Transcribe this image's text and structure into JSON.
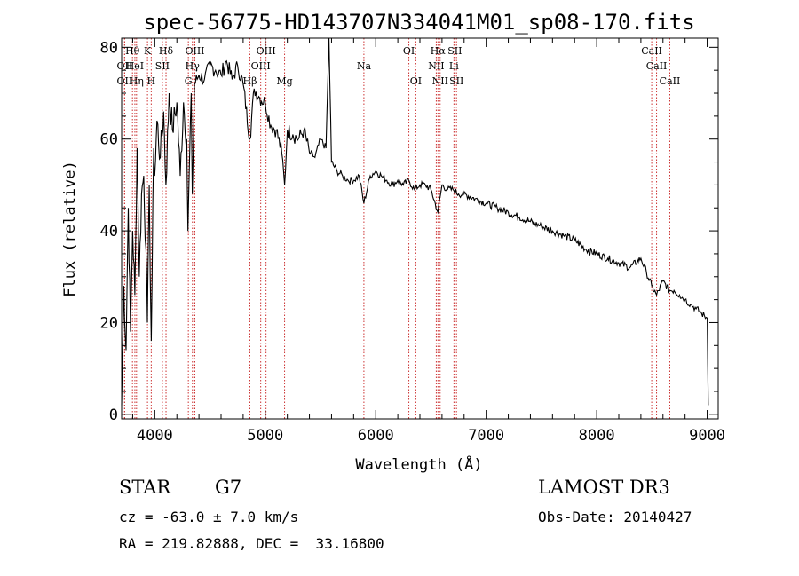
{
  "chart_data": {
    "type": "line",
    "title": "spec-56775-HD143707N334041M01_sp08-170.fits",
    "xlabel": "Wavelength (Å)",
    "ylabel": "Flux (relative)",
    "xlim": [
      3700,
      9100
    ],
    "ylim": [
      -1,
      82
    ],
    "x_ticks": [
      4000,
      5000,
      6000,
      7000,
      8000,
      9000
    ],
    "y_ticks": [
      0,
      20,
      40,
      60,
      80
    ],
    "grid": false,
    "series": [
      {
        "name": "spectrum",
        "x": [
          3700,
          3720,
          3740,
          3760,
          3780,
          3800,
          3820,
          3840,
          3860,
          3880,
          3900,
          3920,
          3933,
          3950,
          3968,
          3990,
          4000,
          4020,
          4050,
          4080,
          4101,
          4130,
          4160,
          4200,
          4230,
          4260,
          4290,
          4300,
          4330,
          4340,
          4360,
          4400,
          4450,
          4500,
          4550,
          4600,
          4650,
          4700,
          4750,
          4800,
          4861,
          4900,
          4950,
          5000,
          5050,
          5100,
          5150,
          5175,
          5200,
          5250,
          5300,
          5350,
          5400,
          5450,
          5500,
          5550,
          5577,
          5600,
          5650,
          5700,
          5750,
          5800,
          5850,
          5893,
          5950,
          6000,
          6050,
          6100,
          6150,
          6200,
          6250,
          6300,
          6350,
          6400,
          6450,
          6500,
          6563,
          6600,
          6650,
          6700,
          6750,
          6800,
          6900,
          7000,
          7100,
          7200,
          7300,
          7400,
          7500,
          7600,
          7700,
          7800,
          7900,
          8000,
          8100,
          8200,
          8300,
          8400,
          8450,
          8498,
          8542,
          8600,
          8662,
          8700,
          8750,
          8800,
          8850,
          8900,
          8950,
          9000,
          9010
        ],
        "values": [
          2,
          28,
          14,
          45,
          18,
          40,
          26,
          58,
          30,
          48,
          52,
          36,
          20,
          50,
          16,
          58,
          52,
          64,
          56,
          66,
          50,
          70,
          62,
          68,
          52,
          68,
          60,
          40,
          70,
          48,
          72,
          74,
          73,
          76,
          75,
          74,
          77,
          73,
          76,
          72,
          60,
          71,
          69,
          68,
          63,
          62,
          57,
          50,
          62,
          61,
          60,
          62,
          57,
          56,
          60,
          58,
          82,
          55,
          53,
          52,
          51,
          51,
          52,
          46,
          52,
          53,
          52,
          51,
          50,
          51,
          50,
          51,
          49,
          50,
          50,
          49,
          44,
          50,
          49,
          49,
          48,
          48,
          47,
          46,
          45,
          44,
          43,
          42,
          41,
          40,
          39,
          38,
          36,
          35,
          34,
          33,
          32,
          34,
          31,
          28,
          26,
          29,
          27,
          27,
          26,
          25,
          24,
          23,
          22,
          21,
          2
        ]
      }
    ],
    "lines": [
      {
        "name": "Hθ",
        "wl": 3798,
        "row": 0
      },
      {
        "name": "OII",
        "wl": 3727,
        "row": 1
      },
      {
        "name": "OII",
        "wl": 3727,
        "row": 2
      },
      {
        "name": "HeI",
        "wl": 3820,
        "row": 1
      },
      {
        "name": "Hη",
        "wl": 3835,
        "row": 2
      },
      {
        "name": "K",
        "wl": 3934,
        "row": 0
      },
      {
        "name": "SII",
        "wl": 4069,
        "row": 1
      },
      {
        "name": "H",
        "wl": 3968,
        "row": 2
      },
      {
        "name": "Hδ",
        "wl": 4102,
        "row": 0
      },
      {
        "name": "OIII",
        "wl": 4363,
        "row": 0
      },
      {
        "name": "Hγ",
        "wl": 4341,
        "row": 1
      },
      {
        "name": "G",
        "wl": 4304,
        "row": 2
      },
      {
        "name": "OIII",
        "wl": 5007,
        "row": 0
      },
      {
        "name": "OIII",
        "wl": 4959,
        "row": 1
      },
      {
        "name": "Hβ",
        "wl": 4861,
        "row": 2
      },
      {
        "name": "Mg",
        "wl": 5175,
        "row": 2
      },
      {
        "name": "Na",
        "wl": 5893,
        "row": 1
      },
      {
        "name": "OI",
        "wl": 6300,
        "row": 0
      },
      {
        "name": "OI",
        "wl": 6363,
        "row": 2
      },
      {
        "name": "Hα",
        "wl": 6563,
        "row": 0
      },
      {
        "name": "NII",
        "wl": 6548,
        "row": 1
      },
      {
        "name": "NII",
        "wl": 6583,
        "row": 2
      },
      {
        "name": "SII",
        "wl": 6716,
        "row": 0
      },
      {
        "name": "Li",
        "wl": 6708,
        "row": 1
      },
      {
        "name": "SII",
        "wl": 6731,
        "row": 2
      },
      {
        "name": "CaII",
        "wl": 8498,
        "row": 0
      },
      {
        "name": "CaII",
        "wl": 8542,
        "row": 1
      },
      {
        "name": "CaII",
        "wl": 8662,
        "row": 2
      }
    ]
  },
  "info": {
    "object_class": "STAR",
    "subclass": "G7",
    "survey": "LAMOST DR3",
    "redshift": "cz = -63.0 ± 7.0 km/s",
    "obs_date": "Obs-Date: 20140427",
    "coords": "RA = 219.82888, DEC =  33.16800"
  }
}
